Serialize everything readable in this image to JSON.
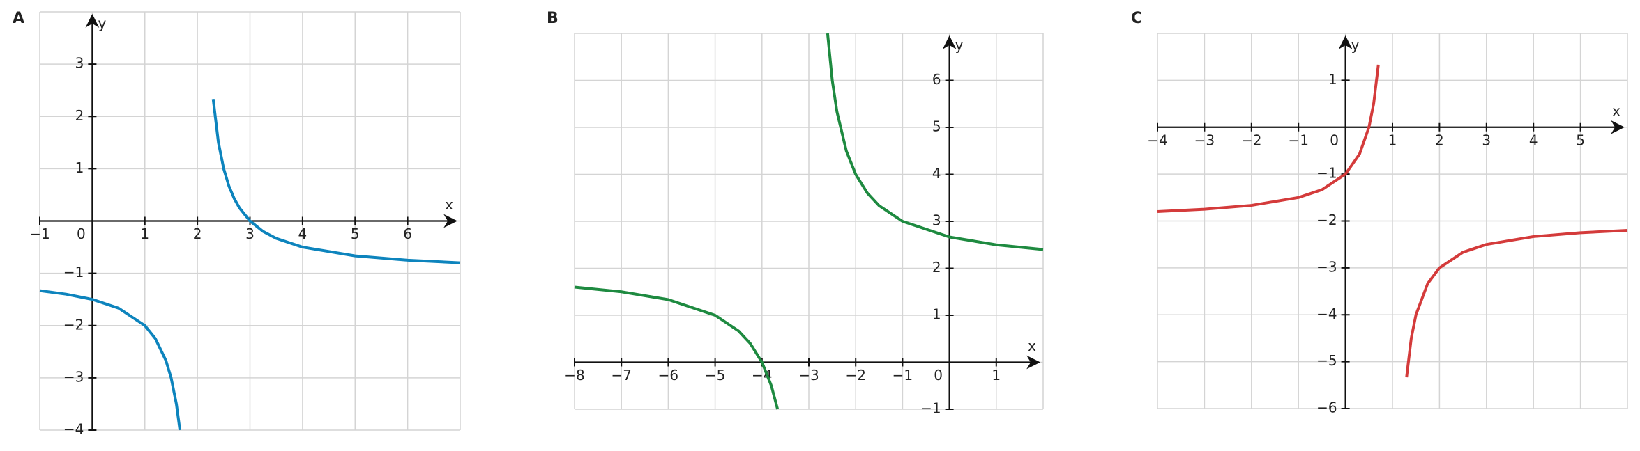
{
  "chart_data": [
    {
      "type": "line",
      "title": "A",
      "x_label": "x",
      "y_label": "y",
      "x": [
        -1,
        -0.5,
        0,
        0.5,
        1,
        1.2,
        1.4,
        1.5,
        1.6,
        1.667,
        2,
        2.3,
        2.4,
        2.5,
        2.6,
        2.7,
        2.8,
        3,
        3.25,
        3.5,
        4,
        5,
        6,
        7
      ],
      "series": [
        {
          "color": "#0d84bd",
          "values": [
            -1.333,
            -1.4,
            -1.5,
            -1.667,
            -2,
            -2.25,
            -2.667,
            -3,
            -3.5,
            -4,
            null,
            2.333,
            1.5,
            1,
            0.667,
            0.429,
            0.25,
            0,
            -0.2,
            -0.333,
            -0.5,
            -0.667,
            -0.75,
            -0.8
          ]
        }
      ],
      "xlim": [
        -1,
        7
      ],
      "ylim": [
        -4,
        4
      ],
      "xticks": [
        {
          "value": -1,
          "label": "−1"
        },
        0,
        1,
        2,
        3,
        4,
        5,
        6
      ],
      "yticks": [
        {
          "value": -4,
          "label": "−4"
        },
        {
          "value": -3,
          "label": "−3"
        },
        {
          "value": -2,
          "label": "−2"
        },
        {
          "value": -1,
          "label": "−1"
        },
        1,
        2,
        3
      ],
      "grid": true
    },
    {
      "type": "line",
      "title": "B",
      "x_label": "x",
      "y_label": "y",
      "x": [
        -8,
        -7,
        -6,
        -5,
        -4.5,
        -4.25,
        -4,
        -3.8,
        -3.667,
        -3,
        -2.6,
        -2.5,
        -2.4,
        -2.2,
        -2,
        -1.75,
        -1.5,
        -1,
        0,
        1,
        2
      ],
      "series": [
        {
          "color": "#1e8a40",
          "values": [
            1.6,
            1.5,
            1.333,
            1,
            0.667,
            0.4,
            0,
            -0.5,
            -1,
            null,
            7,
            6,
            5.333,
            4.5,
            4,
            3.6,
            3.333,
            3,
            2.667,
            2.5,
            2.4
          ]
        }
      ],
      "xlim": [
        -8,
        2
      ],
      "ylim": [
        -1,
        7
      ],
      "xticks": [
        {
          "value": -8,
          "label": "−8"
        },
        {
          "value": -7,
          "label": "−7"
        },
        {
          "value": -6,
          "label": "−6"
        },
        {
          "value": -5,
          "label": "−5"
        },
        {
          "value": -4,
          "label": "−4"
        },
        {
          "value": -3,
          "label": "−3"
        },
        {
          "value": -2,
          "label": "−2"
        },
        {
          "value": -1,
          "label": "−1"
        },
        0,
        1
      ],
      "yticks": [
        {
          "value": -1,
          "label": "−1"
        },
        1,
        2,
        3,
        4,
        5,
        6
      ],
      "grid": true
    },
    {
      "type": "line",
      "title": "C",
      "x_label": "x",
      "y_label": "y",
      "x": [
        -4,
        -3,
        -2,
        -1,
        -0.5,
        0,
        0.3,
        0.5,
        0.6,
        0.7,
        1,
        1.3,
        1.4,
        1.5,
        1.75,
        2,
        2.5,
        3,
        4,
        5,
        6
      ],
      "series": [
        {
          "color": "#d43b3b",
          "values": [
            -1.8,
            -1.75,
            -1.667,
            -1.5,
            -1.333,
            -1,
            -0.571,
            0,
            0.5,
            1.333,
            null,
            -5.333,
            -4.5,
            -4,
            -3.333,
            -3,
            -2.667,
            -2.5,
            -2.333,
            -2.25,
            -2.2
          ]
        }
      ],
      "xlim": [
        -4,
        6
      ],
      "ylim": [
        -6,
        2
      ],
      "xticks": [
        {
          "value": -4,
          "label": "−4"
        },
        {
          "value": -3,
          "label": "−3"
        },
        {
          "value": -2,
          "label": "−2"
        },
        {
          "value": -1,
          "label": "−1"
        },
        0,
        1,
        2,
        3,
        4,
        5
      ],
      "yticks": [
        {
          "value": -6,
          "label": "−6"
        },
        {
          "value": -5,
          "label": "−5"
        },
        {
          "value": -4,
          "label": "−4"
        },
        {
          "value": -3,
          "label": "−3"
        },
        {
          "value": -2,
          "label": "−2"
        },
        {
          "value": -1,
          "label": "−1"
        },
        1
      ],
      "grid": true
    }
  ]
}
